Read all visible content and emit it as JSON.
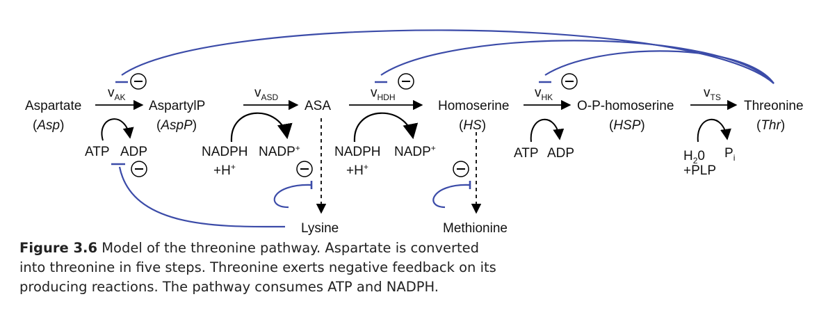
{
  "metabolites": {
    "aspartate": "Aspartate",
    "aspartate_abbr": "Asp",
    "aspartylp": "AspartylP",
    "aspartylp_abbr": "AspP",
    "asa": "ASA",
    "homoserine": "Homoserine",
    "homoserine_abbr": "HS",
    "ophomoserine": "O-P-homoserine",
    "ophomoserine_abbr": "HSP",
    "threonine": "Threonine",
    "threonine_abbr": "Thr",
    "lysine": "Lysine",
    "methionine": "Methionine"
  },
  "rates": {
    "v": "v",
    "ak": "AK",
    "asd": "ASD",
    "hdh": "HDH",
    "hk": "HK",
    "ts": "TS"
  },
  "cofactors": {
    "atp": "ATP",
    "adp": "ADP",
    "nadph": "NADPH",
    "nadp": "NADP",
    "plus_sign": "+",
    "h": "+H",
    "h_sup": "+",
    "h2o_pre": "H",
    "h2o_sub": "2",
    "h2o_post": "0",
    "plp": "+PLP",
    "pi": "P",
    "pi_sub": "i"
  },
  "inhibition_symbol": "⊖",
  "caption": {
    "label": "Figure 3.6",
    "text": "Model of the threonine pathway. Aspartate is converted into threonine in five steps. Threonine exerts negative feedback on its producing reactions. The pathway consumes ATP and NADPH."
  },
  "colors": {
    "feedback": "#3b4ba8",
    "arrow": "#000000"
  }
}
